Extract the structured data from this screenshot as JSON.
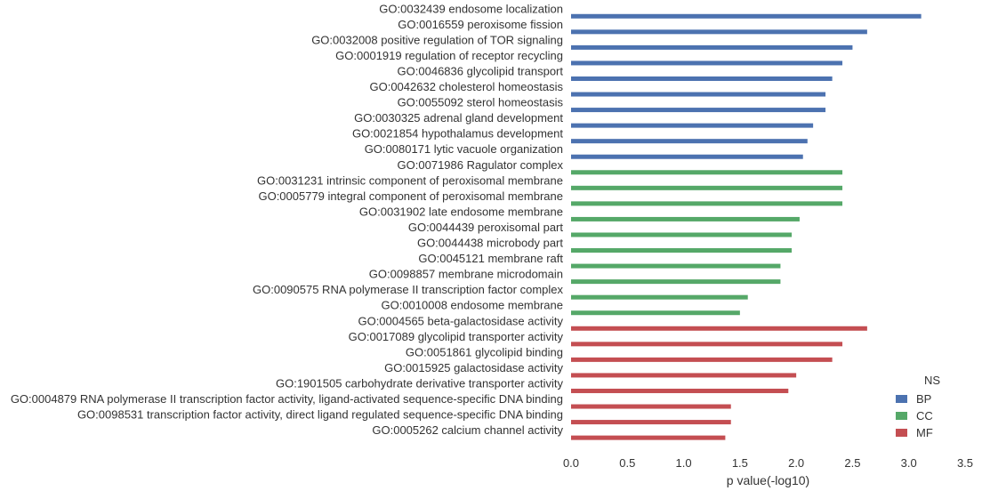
{
  "chart_data": {
    "type": "bar",
    "orientation": "horizontal",
    "xlabel": "p value(-log10)",
    "ylabel": "",
    "xlim": [
      0,
      3.5
    ],
    "xticks": [
      "0.0",
      "0.5",
      "1.0",
      "1.5",
      "2.0",
      "2.5",
      "3.0",
      "3.5"
    ],
    "grid": false,
    "legend": {
      "title": "NS",
      "position": "bottom-right"
    },
    "series": [
      {
        "name": "BP",
        "color": "#4c72b0",
        "categories": [
          "GO:0032439 endosome localization",
          "GO:0016559 peroxisome fission",
          "GO:0032008 positive regulation of TOR signaling",
          "GO:0001919 regulation of receptor recycling",
          "GO:0046836 glycolipid transport",
          "GO:0042632 cholesterol homeostasis",
          "GO:0055092 sterol homeostasis",
          "GO:0030325 adrenal gland development",
          "GO:0021854 hypothalamus development",
          "GO:0080171 lytic vacuole organization"
        ],
        "values": [
          3.11,
          2.63,
          2.5,
          2.41,
          2.32,
          2.26,
          2.26,
          2.15,
          2.1,
          2.06
        ]
      },
      {
        "name": "CC",
        "color": "#55a868",
        "categories": [
          "GO:0071986 Ragulator complex",
          "GO:0031231 intrinsic component of peroxisomal membrane",
          "GO:0005779 integral component of peroxisomal membrane",
          "GO:0031902 late endosome membrane",
          "GO:0044439 peroxisomal part",
          "GO:0044438 microbody part",
          "GO:0045121 membrane raft",
          "GO:0098857 membrane microdomain",
          "GO:0090575 RNA polymerase II transcription factor complex",
          "GO:0010008 endosome membrane"
        ],
        "values": [
          2.41,
          2.41,
          2.41,
          2.03,
          1.96,
          1.96,
          1.86,
          1.86,
          1.57,
          1.5
        ]
      },
      {
        "name": "MF",
        "color": "#c44e52",
        "categories": [
          "GO:0004565 beta-galactosidase activity",
          "GO:0017089 glycolipid transporter activity",
          "GO:0051861 glycolipid binding",
          "GO:0015925 galactosidase activity",
          "GO:1901505 carbohydrate derivative transporter activity",
          "GO:0004879 RNA polymerase II transcription factor activity, ligand-activated sequence-specific DNA binding",
          "GO:0098531 transcription factor activity, direct ligand regulated sequence-specific DNA binding",
          "GO:0005262 calcium channel activity"
        ],
        "values": [
          2.63,
          2.41,
          2.32,
          2.0,
          1.93,
          1.42,
          1.42,
          1.37
        ]
      }
    ]
  }
}
